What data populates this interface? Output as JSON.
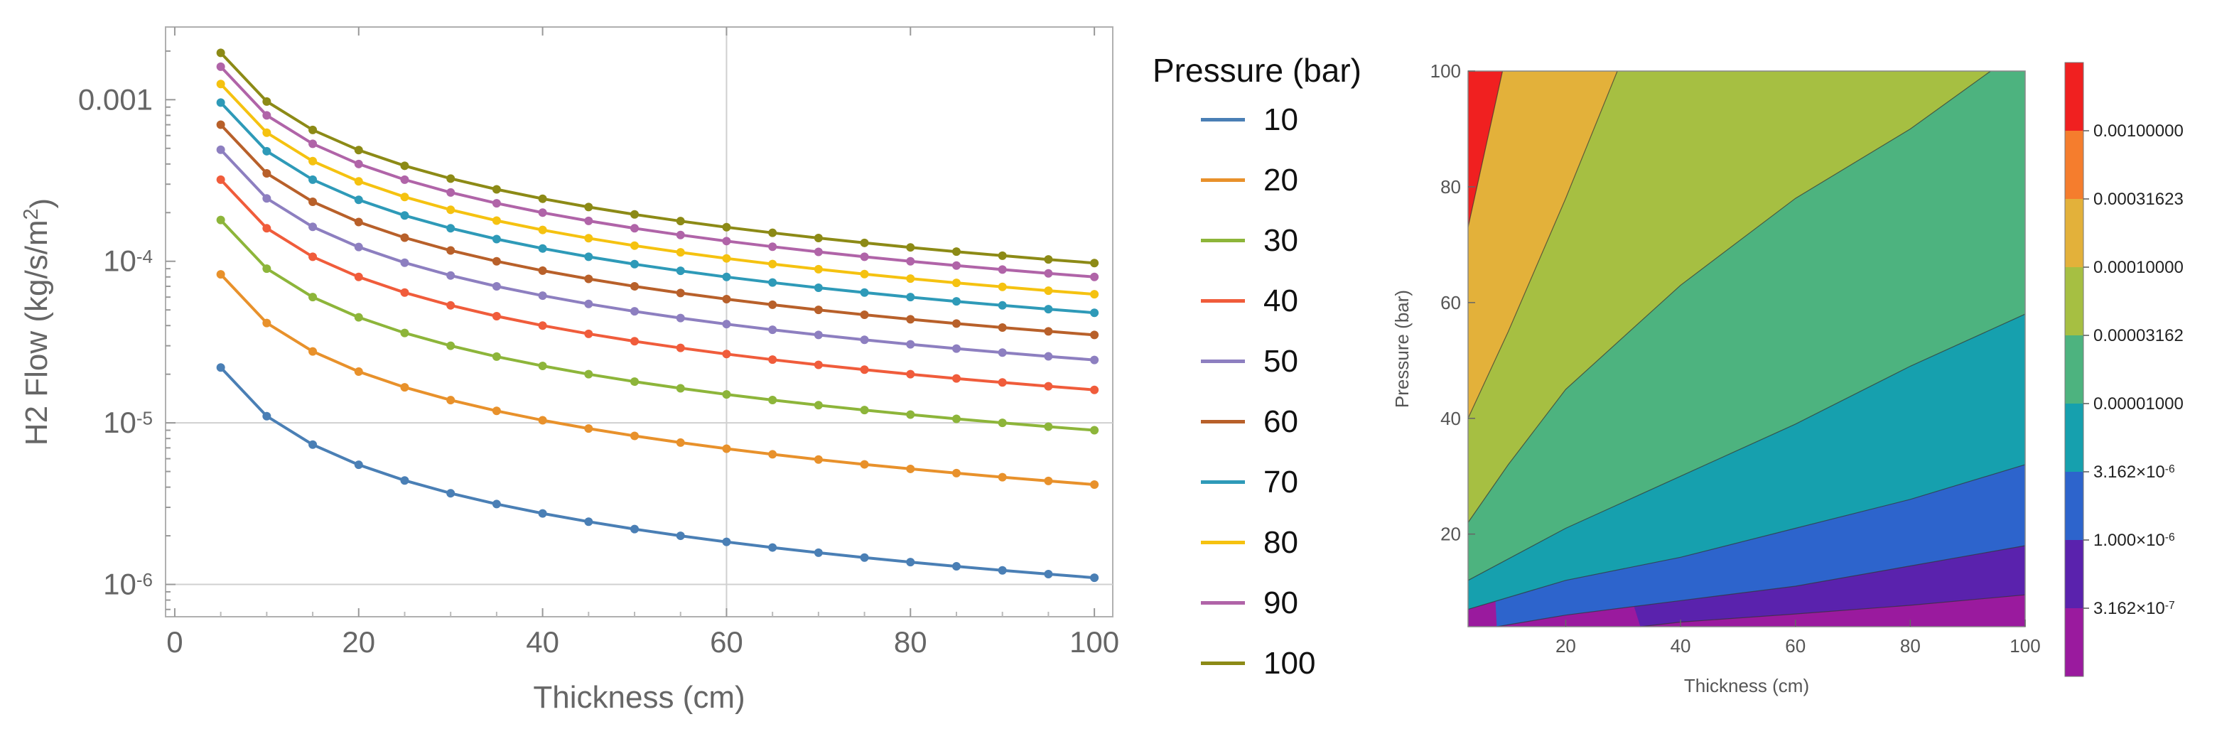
{
  "chart_data": [
    {
      "type": "line",
      "title": "",
      "xlabel": "Thickness (cm)",
      "ylabel": "H2 Flow (kg/s/m^2)",
      "ylabel_parts": {
        "main": "H2 Flow (kg/s/m",
        "exp": "2",
        "tail": ")"
      },
      "yscale": "log",
      "xlim": [
        -1,
        102
      ],
      "ylim_exp": [
        -6.2,
        -2.55
      ],
      "x_ticks": [
        "0",
        "20",
        "40",
        "60",
        "80",
        "100"
      ],
      "y_ticks": [
        {
          "base": "0.001",
          "exp": ""
        },
        {
          "base": "10",
          "exp": "-4"
        },
        {
          "base": "10",
          "exp": "-5"
        },
        {
          "base": "10",
          "exp": "-6"
        }
      ],
      "x": [
        5,
        10,
        15,
        20,
        25,
        30,
        35,
        40,
        45,
        50,
        55,
        60,
        65,
        70,
        75,
        80,
        85,
        90,
        95,
        100
      ],
      "reference_lines": {
        "x": 60,
        "y_exp": [
          -5,
          -6
        ]
      },
      "legend_title": "Pressure (bar)",
      "series": [
        {
          "name": "10",
          "color": "#4a7fb5",
          "values_at_thickness_5": 2.2e-05,
          "values_at_thickness_100": 1.1e-06
        },
        {
          "name": "20",
          "color": "#e8912b",
          "values_at_thickness_5": 8.3e-05,
          "values_at_thickness_100": 4.1e-06
        },
        {
          "name": "30",
          "color": "#8db53a",
          "values_at_thickness_5": 0.00018,
          "values_at_thickness_100": 9e-06
        },
        {
          "name": "40",
          "color": "#f05c3b",
          "values_at_thickness_5": 0.00032,
          "values_at_thickness_100": 1.6e-05
        },
        {
          "name": "50",
          "color": "#8d7fc0",
          "values_at_thickness_5": 0.00049,
          "values_at_thickness_100": 2.45e-05
        },
        {
          "name": "60",
          "color": "#b8602a",
          "values_at_thickness_5": 0.0007,
          "values_at_thickness_100": 3.5e-05
        },
        {
          "name": "70",
          "color": "#2e9ab8",
          "values_at_thickness_5": 0.00096,
          "values_at_thickness_100": 4.8e-05
        },
        {
          "name": "80",
          "color": "#f5c210",
          "values_at_thickness_5": 0.00125,
          "values_at_thickness_100": 6.2e-05
        },
        {
          "name": "90",
          "color": "#b064a8",
          "values_at_thickness_5": 0.0016,
          "values_at_thickness_100": 7.8e-05
        },
        {
          "name": "100",
          "color": "#8c8a16",
          "values_at_thickness_5": 0.00195,
          "values_at_thickness_100": 9.6e-05
        }
      ]
    },
    {
      "type": "contour",
      "title": "",
      "xlabel": "Thickness (cm)",
      "ylabel": "Pressure (bar)",
      "xlim": [
        3,
        100
      ],
      "ylim": [
        4,
        100
      ],
      "x_ticks": [
        "20",
        "40",
        "60",
        "80",
        "100"
      ],
      "y_ticks": [
        "20",
        "40",
        "60",
        "80",
        "100"
      ],
      "contour_levels": [
        {
          "value": 0.001,
          "boundary_points": [
            [
              3,
              73
            ],
            [
              9,
              100
            ]
          ]
        },
        {
          "value": 0.0003162,
          "boundary_points": [
            [
              3,
              40
            ],
            [
              10,
              55
            ],
            [
              20,
              78
            ],
            [
              29,
              100
            ]
          ]
        },
        {
          "value": 0.0001,
          "boundary_points": [
            [
              3,
              22
            ],
            [
              10,
              32
            ],
            [
              20,
              45
            ],
            [
              40,
              63
            ],
            [
              60,
              78
            ],
            [
              80,
              90
            ],
            [
              94,
              100
            ]
          ]
        },
        {
          "value": 3.162e-05,
          "boundary_points": [
            [
              3,
              12
            ],
            [
              20,
              21
            ],
            [
              40,
              30
            ],
            [
              60,
              39
            ],
            [
              80,
              49
            ],
            [
              100,
              58
            ]
          ]
        },
        {
          "value": 1e-05,
          "boundary_points": [
            [
              3,
              7
            ],
            [
              20,
              12
            ],
            [
              40,
              16
            ],
            [
              60,
              21
            ],
            [
              80,
              26
            ],
            [
              100,
              32
            ]
          ]
        },
        {
          "value": 3.162e-06,
          "boundary_points": [
            [
              8,
              4
            ],
            [
              20,
              6
            ],
            [
              40,
              8.5
            ],
            [
              60,
              11
            ],
            [
              80,
              14.5
            ],
            [
              100,
              18
            ]
          ]
        },
        {
          "value": 1e-06,
          "boundary_points": [
            [
              33,
              4
            ],
            [
              40,
              4.8
            ],
            [
              60,
              6.2
            ],
            [
              80,
              7.7
            ],
            [
              100,
              9.5
            ]
          ]
        }
      ],
      "region_colors": [
        "#f02020",
        "#f57d2d",
        "#e3b13a",
        "#a6bf42",
        "#4db37f",
        "#16a0ae",
        "#2d64cc",
        "#5a22ad",
        "#9a1a9e"
      ],
      "colorbar_labels": [
        {
          "text": "0.00100000",
          "exp": ""
        },
        {
          "text": "0.00031623",
          "exp": ""
        },
        {
          "text": "0.00010000",
          "exp": ""
        },
        {
          "text": "0.00003162",
          "exp": ""
        },
        {
          "text": "0.00001000",
          "exp": ""
        },
        {
          "text": "3.162×10",
          "exp": "-6"
        },
        {
          "text": "1.000×10",
          "exp": "-6"
        },
        {
          "text": "3.162×10",
          "exp": "-7"
        }
      ]
    }
  ]
}
